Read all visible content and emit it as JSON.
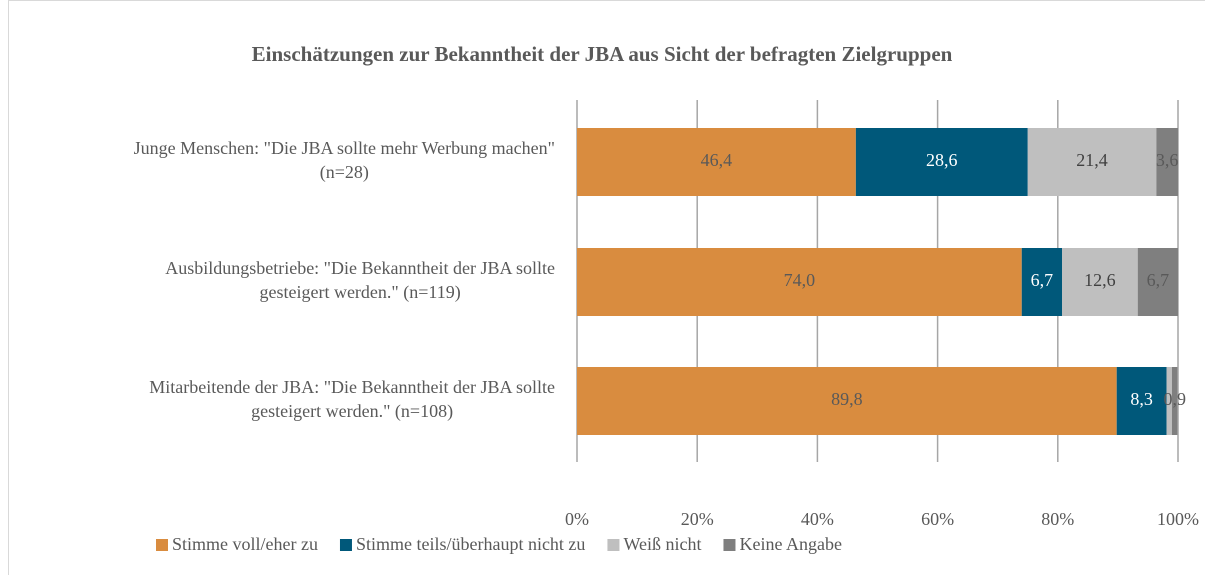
{
  "chart_data": {
    "type": "stacked-barh",
    "title": "Einschätzungen zur Bekanntheit der  JBA aus Sicht der befragten Zielgruppen",
    "categories": [
      [
        "Junge Menschen: \"Die JBA sollte mehr Werbung machen\"",
        "(n=28)"
      ],
      [
        "Ausbildungsbetriebe: \"Die Bekanntheit der JBA sollte",
        "gesteigert werden.\" (n=119)"
      ],
      [
        "Mitarbeitende der JBA: \"Die Bekanntheit der JBA sollte",
        "gesteigert werden.\" (n=108)"
      ]
    ],
    "series": [
      {
        "name": "Stimme voll/eher zu",
        "color": "#d98c3f",
        "values": [
          46.4,
          74.0,
          89.8
        ],
        "value_labels": [
          "46,4",
          "74,0",
          "89,8"
        ]
      },
      {
        "name": "Stimme teils/überhaupt nicht zu",
        "color": "#00587a",
        "values": [
          28.6,
          6.7,
          8.3
        ],
        "value_labels": [
          "28,6",
          "6,7",
          "8,3"
        ]
      },
      {
        "name": "Weiß nicht",
        "color": "#bfbfbf",
        "values": [
          21.4,
          12.6,
          0.9
        ],
        "value_labels": [
          "21,4",
          "12,6",
          null
        ]
      },
      {
        "name": "Keine Angabe",
        "color": "#7f7f7f",
        "values": [
          3.6,
          6.7,
          0.9
        ],
        "value_labels": [
          "3,6",
          "6,7",
          "0,9"
        ]
      }
    ],
    "xlim": [
      0,
      100
    ],
    "xticks": [
      {
        "value": 0,
        "label": "0%"
      },
      {
        "value": 20,
        "label": "20%"
      },
      {
        "value": 40,
        "label": "40%"
      },
      {
        "value": 60,
        "label": "60%"
      },
      {
        "value": 80,
        "label": "80%"
      },
      {
        "value": 100,
        "label": "100%"
      }
    ],
    "grid": true,
    "legend": "bottom"
  }
}
